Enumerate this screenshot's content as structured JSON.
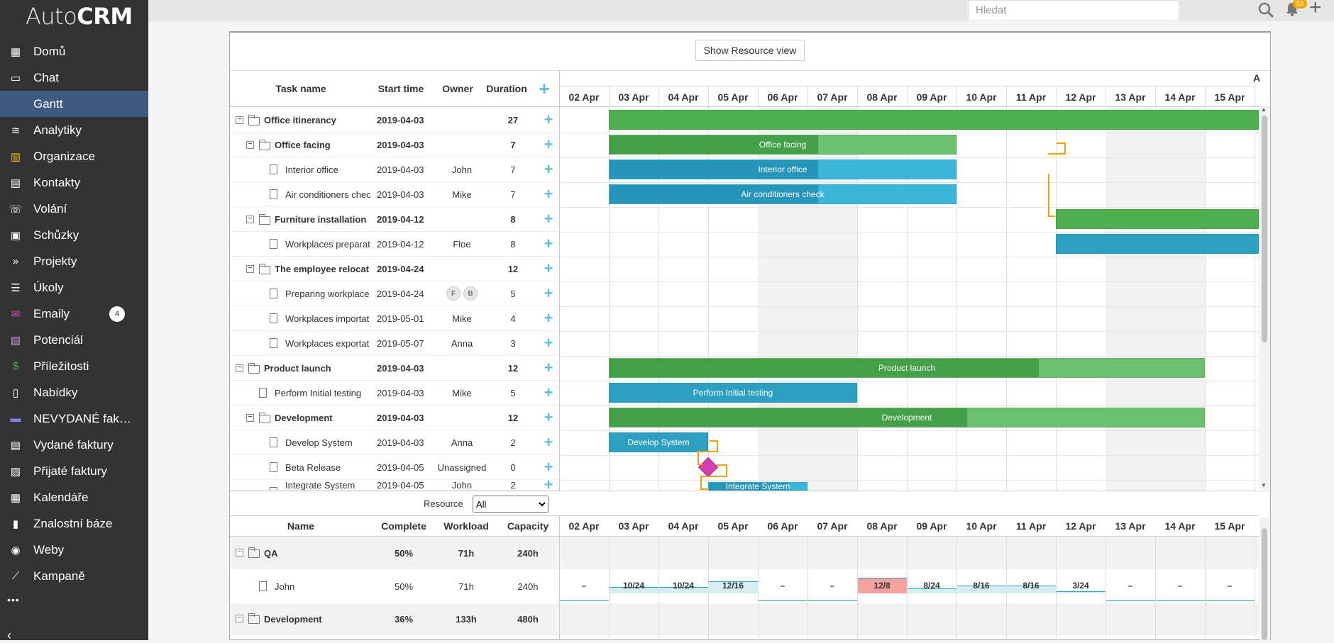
{
  "app": {
    "logo_light": "Auto",
    "logo_bold": "CRM"
  },
  "sidebar": {
    "items": [
      {
        "label": "Domů",
        "icon": "grid-icon"
      },
      {
        "label": "Chat",
        "icon": "monitor-icon"
      },
      {
        "label": "Gantt",
        "icon": "",
        "active": true
      },
      {
        "label": "Analytiky",
        "icon": "database-icon"
      },
      {
        "label": "Organizace",
        "icon": "building-icon"
      },
      {
        "label": "Kontakty",
        "icon": "contact-icon"
      },
      {
        "label": "Volání",
        "icon": "phone-icon"
      },
      {
        "label": "Schůzky",
        "icon": "calendar-check-icon"
      },
      {
        "label": "Projekty",
        "icon": "double-chevron-icon"
      },
      {
        "label": "Úkoly",
        "icon": "list-icon"
      },
      {
        "label": "Emaily",
        "icon": "envelope-icon",
        "badge": "4"
      },
      {
        "label": "Potenciál",
        "icon": "id-card-icon"
      },
      {
        "label": "Příležitosti",
        "icon": "dollar-icon"
      },
      {
        "label": "Nabídky",
        "icon": "document-icon"
      },
      {
        "label": "NEVYDANÉ fak…",
        "icon": "folder-icon"
      },
      {
        "label": "Vydané faktury",
        "icon": "invoice-icon"
      },
      {
        "label": "Přijaté faktury",
        "icon": "archive-icon"
      },
      {
        "label": "Kalendáře",
        "icon": "calendar-icon"
      },
      {
        "label": "Znalostní báze",
        "icon": "book-icon"
      },
      {
        "label": "Weby",
        "icon": "globe-icon"
      },
      {
        "label": "Kampaně",
        "icon": "chart-line-icon"
      }
    ],
    "more": "•••"
  },
  "topbar": {
    "search_placeholder": "Hledat",
    "bell_count": "53"
  },
  "gantt": {
    "resource_button": "Show Resource view",
    "columns": {
      "name": "Task name",
      "start": "Start time",
      "owner": "Owner",
      "duration": "Duration"
    },
    "dates": [
      "02 Apr",
      "03 Apr",
      "04 Apr",
      "05 Apr",
      "06 Apr",
      "07 Apr",
      "08 Apr",
      "09 Apr",
      "10 Apr",
      "11 Apr",
      "12 Apr",
      "13 Apr",
      "14 Apr",
      "15 Apr"
    ],
    "month_fragment": "A",
    "tasks": [
      {
        "name": "Office itinerancy",
        "start": "2019-04-03",
        "owner": "",
        "duration": "27",
        "level": 0,
        "type": "project",
        "bold": true,
        "bar_label": ""
      },
      {
        "name": "Office facing",
        "start": "2019-04-03",
        "owner": "",
        "duration": "7",
        "level": 1,
        "type": "project",
        "bold": true,
        "bar_label": "Office facing"
      },
      {
        "name": "Interior office",
        "start": "2019-04-03",
        "owner": "John",
        "duration": "7",
        "level": 2,
        "type": "task",
        "bold": false,
        "bar_label": "Interior office"
      },
      {
        "name": "Air conditioners chec",
        "start": "2019-04-03",
        "owner": "Mike",
        "duration": "7",
        "level": 2,
        "type": "task",
        "bold": false,
        "bar_label": "Air conditioners check"
      },
      {
        "name": "Furniture installation",
        "start": "2019-04-12",
        "owner": "",
        "duration": "8",
        "level": 1,
        "type": "project",
        "bold": true,
        "bar_label": ""
      },
      {
        "name": "Workplaces preparat",
        "start": "2019-04-12",
        "owner": "Floe",
        "duration": "8",
        "level": 2,
        "type": "task",
        "bold": false,
        "bar_label": ""
      },
      {
        "name": "The employee relocat",
        "start": "2019-04-24",
        "owner": "",
        "duration": "12",
        "level": 1,
        "type": "project",
        "bold": true,
        "bar_label": ""
      },
      {
        "name": "Preparing workplace",
        "start": "2019-04-24",
        "owner": "",
        "avatars": [
          "F",
          "B"
        ],
        "duration": "5",
        "level": 2,
        "type": "task",
        "bold": false,
        "bar_label": ""
      },
      {
        "name": "Workplaces importat",
        "start": "2019-05-01",
        "owner": "Mike",
        "duration": "4",
        "level": 2,
        "type": "task",
        "bold": false,
        "bar_label": ""
      },
      {
        "name": "Workplaces exportat",
        "start": "2019-05-07",
        "owner": "Anna",
        "duration": "3",
        "level": 2,
        "type": "task",
        "bold": false,
        "bar_label": ""
      },
      {
        "name": "Product launch",
        "start": "2019-04-03",
        "owner": "",
        "duration": "12",
        "level": 0,
        "type": "project",
        "bold": true,
        "bar_label": "Product launch"
      },
      {
        "name": "Perform Initial testing",
        "start": "2019-04-03",
        "owner": "Mike",
        "duration": "5",
        "level": 1,
        "type": "task",
        "bold": false,
        "bar_label": "Perform Initial testing"
      },
      {
        "name": "Development",
        "start": "2019-04-03",
        "owner": "",
        "duration": "12",
        "level": 1,
        "type": "project",
        "bold": true,
        "bar_label": "Development"
      },
      {
        "name": "Develop System",
        "start": "2019-04-03",
        "owner": "Anna",
        "duration": "2",
        "level": 2,
        "type": "task",
        "bold": false,
        "bar_label": "Develop System"
      },
      {
        "name": "Beta Release",
        "start": "2019-04-05",
        "owner": "Unassigned",
        "duration": "0",
        "level": 2,
        "type": "milestone",
        "bold": false,
        "bar_label": ""
      },
      {
        "name": "Integrate System",
        "start": "2019-04-05",
        "owner": "John",
        "duration": "2",
        "level": 2,
        "type": "task",
        "bold": false,
        "bar_label": "Integrate System"
      }
    ]
  },
  "resources": {
    "filter_label": "Resource",
    "filter_value": "All",
    "columns": {
      "name": "Name",
      "complete": "Complete",
      "workload": "Workload",
      "capacity": "Capacity"
    },
    "rows": [
      {
        "name": "QA",
        "complete": "50%",
        "workload": "71h",
        "capacity": "240h",
        "group": true,
        "cells": []
      },
      {
        "name": "John",
        "complete": "50%",
        "workload": "71h",
        "capacity": "240h",
        "group": false,
        "cells": [
          "–",
          "10/24",
          "10/24",
          "12/16",
          "–",
          "–",
          "12/8",
          "8/24",
          "8/16",
          "8/16",
          "3/24",
          "–",
          "–",
          "–"
        ]
      },
      {
        "name": "Development",
        "complete": "36%",
        "workload": "133h",
        "capacity": "480h",
        "group": true,
        "cells": []
      }
    ]
  },
  "colors": {
    "project_bar": "#4caf50",
    "task_bar": "#2da0c2",
    "milestone": "#d63fb0",
    "link": "#f0a000",
    "overload": "#f7a1a1"
  }
}
